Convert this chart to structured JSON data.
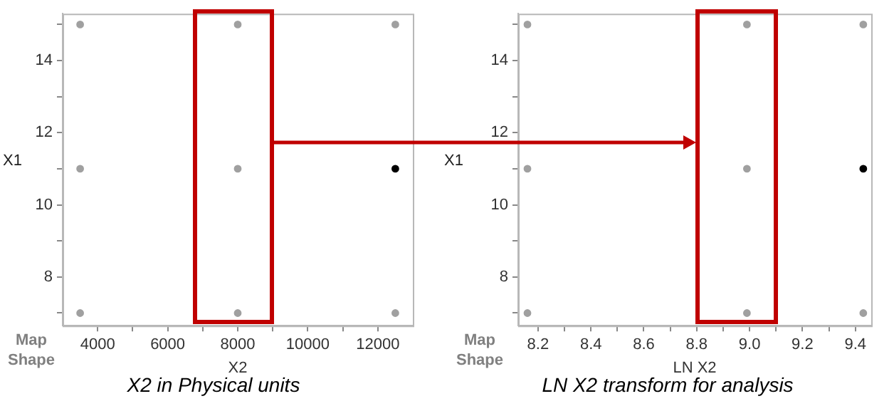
{
  "chart_data": [
    {
      "type": "scatter",
      "xlabel": "X2",
      "ylabel": "X1",
      "marker": "circle",
      "x": [
        3500,
        3500,
        3500,
        8000,
        8000,
        8000,
        12500,
        12500,
        12500
      ],
      "values": [
        7,
        11,
        15,
        7,
        11,
        15,
        7,
        11,
        15
      ],
      "colors": [
        "#a0a0a0",
        "#a0a0a0",
        "#a0a0a0",
        "#a0a0a0",
        "#a0a0a0",
        "#a0a0a0",
        "#a0a0a0",
        "#000000",
        "#a0a0a0"
      ],
      "xlim": [
        3000,
        13000
      ],
      "xticks": [
        4000,
        {
          "value": 5000,
          "label": null
        },
        6000,
        {
          "value": 7000,
          "label": null
        },
        8000,
        {
          "value": 9000,
          "label": null
        },
        10000,
        {
          "value": 11000,
          "label": null
        },
        12000
      ],
      "ylim": [
        6.65,
        15.3
      ],
      "yticks": [
        {
          "value": 7,
          "label": null
        },
        8,
        {
          "value": 9,
          "label": null
        },
        10,
        {
          "value": 11,
          "label": null
        },
        12,
        {
          "value": 13,
          "label": null
        },
        14,
        {
          "value": 15,
          "label": null
        }
      ],
      "annotations": [
        "Map Shape",
        "X2 in Physical units"
      ]
    },
    {
      "type": "scatter",
      "xlabel": "LN X2",
      "ylabel": "X1",
      "marker": "circle",
      "x": [
        8.16,
        8.16,
        8.16,
        8.99,
        8.99,
        8.99,
        9.43,
        9.43,
        9.43
      ],
      "values": [
        7,
        11,
        15,
        7,
        11,
        15,
        7,
        11,
        15
      ],
      "colors": [
        "#a0a0a0",
        "#a0a0a0",
        "#a0a0a0",
        "#a0a0a0",
        "#a0a0a0",
        "#a0a0a0",
        "#a0a0a0",
        "#000000",
        "#a0a0a0"
      ],
      "xlim": [
        8.125,
        9.46
      ],
      "xticks": [
        8.2,
        {
          "value": 8.3,
          "label": null
        },
        8.4,
        {
          "value": 8.5,
          "label": null
        },
        8.6,
        {
          "value": 8.7,
          "label": null
        },
        8.8,
        {
          "value": 8.9,
          "label": null
        },
        {
          "value": 9,
          "label": "9.0"
        },
        {
          "value": 9.1,
          "label": null
        },
        9.2,
        {
          "value": 9.3,
          "label": null
        },
        9.4
      ],
      "ylim": [
        6.65,
        15.3
      ],
      "yticks": [
        {
          "value": 7,
          "label": null
        },
        8,
        {
          "value": 9,
          "label": null
        },
        10,
        {
          "value": 11,
          "label": null
        },
        12,
        {
          "value": 13,
          "label": null
        },
        14,
        {
          "value": 15,
          "label": null
        }
      ],
      "annotations": [
        "Map Shape",
        "LN X2 transform for analysis"
      ]
    }
  ]
}
